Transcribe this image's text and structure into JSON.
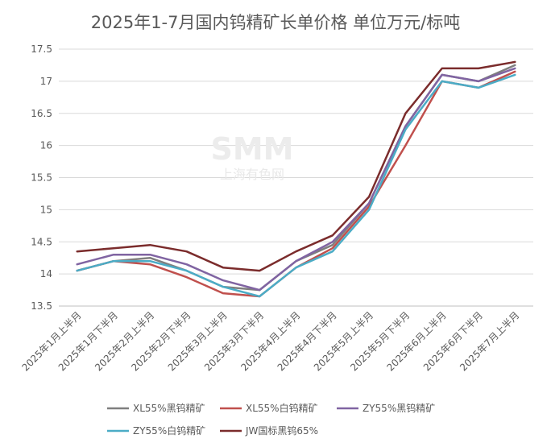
{
  "chart_data": {
    "type": "line",
    "title": "2025年1-7月国内钨精矿长单价格 单位万元/标吨",
    "watermark": {
      "logo": "SMM",
      "text": "上海有色网"
    },
    "categories": [
      "2025年1月上半月",
      "2025年1月下半月",
      "2025年2月上半月",
      "2025年2月下半月",
      "2025年3月上半月",
      "2025年3月下半月",
      "2025年4月上半月",
      "2025年4月下半月",
      "2025年5月上半月",
      "2025年5月下半月",
      "2025年6月上半月",
      "2025年6月下半月",
      "2025年7月上半月"
    ],
    "yticks": [
      "13.5",
      "14",
      "14.5",
      "15",
      "15.5",
      "16",
      "16.5",
      "17",
      "17.5"
    ],
    "ylim": [
      13.5,
      17.5
    ],
    "grid": true,
    "legend_position": "bottom",
    "series": [
      {
        "name": "XL55%黑钨精矿",
        "color": "#7f7f7f",
        "values": [
          14.05,
          14.2,
          14.25,
          14.05,
          13.8,
          13.75,
          14.2,
          14.45,
          15.1,
          16.3,
          17.1,
          17.0,
          17.25
        ]
      },
      {
        "name": "XL55%白钨精矿",
        "color": "#c0504d",
        "values": [
          14.05,
          14.2,
          14.15,
          13.95,
          13.7,
          13.65,
          14.1,
          14.4,
          15.05,
          16.0,
          17.0,
          16.9,
          17.15
        ]
      },
      {
        "name": "ZY55%黑钨精矿",
        "color": "#8064a2",
        "values": [
          14.15,
          14.3,
          14.3,
          14.15,
          13.9,
          13.75,
          14.2,
          14.5,
          15.1,
          16.3,
          17.1,
          17.0,
          17.2
        ]
      },
      {
        "name": "ZY55%白钨精矿",
        "color": "#4bacc6",
        "values": [
          14.05,
          14.2,
          14.2,
          14.05,
          13.8,
          13.65,
          14.1,
          14.35,
          15.0,
          16.25,
          17.0,
          16.9,
          17.1
        ]
      },
      {
        "name": "JW国标黑钨65%",
        "color": "#7b2c2c",
        "values": [
          14.35,
          14.4,
          14.45,
          14.35,
          14.1,
          14.05,
          14.35,
          14.6,
          15.2,
          16.5,
          17.2,
          17.2,
          17.3
        ]
      }
    ]
  }
}
